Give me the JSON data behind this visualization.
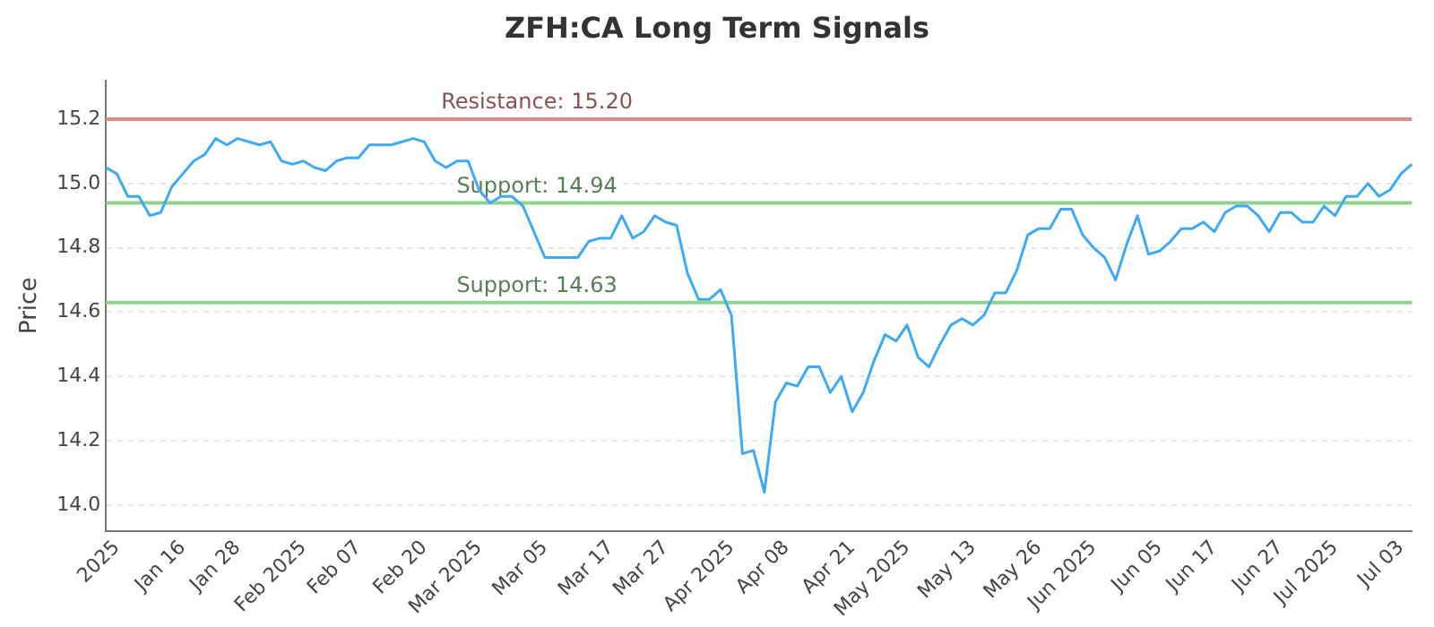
{
  "chart_data": {
    "type": "line",
    "title": "ZFH:CA Long Term Signals",
    "ylabel": "Price",
    "categories": [
      null,
      "2025",
      null,
      null,
      null,
      null,
      null,
      "Jan 16",
      null,
      null,
      null,
      null,
      "Jan 28",
      null,
      null,
      null,
      null,
      null,
      "Feb 2025",
      null,
      null,
      null,
      null,
      "Feb 07",
      null,
      null,
      null,
      null,
      null,
      "Feb 20",
      null,
      null,
      null,
      null,
      "Mar 2025",
      null,
      null,
      null,
      null,
      null,
      "Mar 05",
      null,
      null,
      null,
      null,
      null,
      "Mar 17",
      null,
      null,
      null,
      null,
      "Mar 27",
      null,
      null,
      null,
      null,
      null,
      "Apr 2025",
      null,
      null,
      null,
      null,
      "Apr 08",
      null,
      null,
      null,
      null,
      null,
      "Apr 21",
      null,
      null,
      null,
      null,
      "May 2025",
      null,
      null,
      null,
      null,
      null,
      "May 13",
      null,
      null,
      null,
      null,
      null,
      "May 26",
      null,
      null,
      null,
      null,
      "Jun 2025",
      null,
      null,
      null,
      null,
      null,
      "Jun 05",
      null,
      null,
      null,
      null,
      "Jun 17",
      null,
      null,
      null,
      null,
      null,
      "Jun 27",
      null,
      null,
      null,
      null,
      "Jul 2025",
      null,
      null,
      null,
      null,
      null,
      "Jul 03",
      null
    ],
    "series": [
      {
        "color": "#3fa9f5",
        "values": [
          15.05,
          15.03,
          14.96,
          14.96,
          14.9,
          14.91,
          14.99,
          15.03,
          15.07,
          15.09,
          15.14,
          15.12,
          15.14,
          15.13,
          15.12,
          15.13,
          15.07,
          15.06,
          15.07,
          15.05,
          15.04,
          15.07,
          15.08,
          15.08,
          15.12,
          15.12,
          15.12,
          15.13,
          15.14,
          15.13,
          15.07,
          15.05,
          15.07,
          15.07,
          14.98,
          14.94,
          14.96,
          14.96,
          14.93,
          14.85,
          14.77,
          14.77,
          14.77,
          14.77,
          14.82,
          14.83,
          14.83,
          14.9,
          14.83,
          14.85,
          14.9,
          14.88,
          14.87,
          14.72,
          14.64,
          14.64,
          14.67,
          14.59,
          14.16,
          14.17,
          14.04,
          14.32,
          14.38,
          14.37,
          14.43,
          14.43,
          14.35,
          14.4,
          14.29,
          14.35,
          14.45,
          14.53,
          14.51,
          14.56,
          14.46,
          14.43,
          14.5,
          14.56,
          14.58,
          14.56,
          14.59,
          14.66,
          14.66,
          14.73,
          14.84,
          14.86,
          14.86,
          14.92,
          14.92,
          14.84,
          14.8,
          14.77,
          14.7,
          14.81,
          14.9,
          14.78,
          14.79,
          14.82,
          14.86,
          14.86,
          14.88,
          14.85,
          14.91,
          14.93,
          14.93,
          14.9,
          14.85,
          14.91,
          14.91,
          14.88,
          14.88,
          14.93,
          14.9,
          14.96,
          14.96,
          15.0,
          14.96,
          14.98,
          15.03,
          15.06
        ]
      }
    ],
    "ylim": [
      13.92,
      15.32
    ],
    "yticks": [
      {
        "value": 14.0,
        "label": "14.0"
      },
      {
        "value": 14.2,
        "label": "14.2"
      },
      {
        "value": 14.4,
        "label": "14.4"
      },
      {
        "value": 14.6,
        "label": "14.6"
      },
      {
        "value": 14.8,
        "label": "14.8"
      },
      {
        "value": 15.0,
        "label": "15.0"
      },
      {
        "value": 15.2,
        "label": "15.2"
      }
    ],
    "ref_lines": [
      {
        "axis": "y",
        "value": 15.2,
        "label": "Resistance: 15.20",
        "color": "#e08a8a"
      },
      {
        "axis": "y",
        "value": 14.94,
        "label": "Support: 14.94",
        "color": "#8fd18f"
      },
      {
        "axis": "y",
        "value": 14.63,
        "label": "Support: 14.63",
        "color": "#8fd18f"
      }
    ],
    "grid": "y",
    "legend": false,
    "marker": "none",
    "line_style": "solid"
  }
}
